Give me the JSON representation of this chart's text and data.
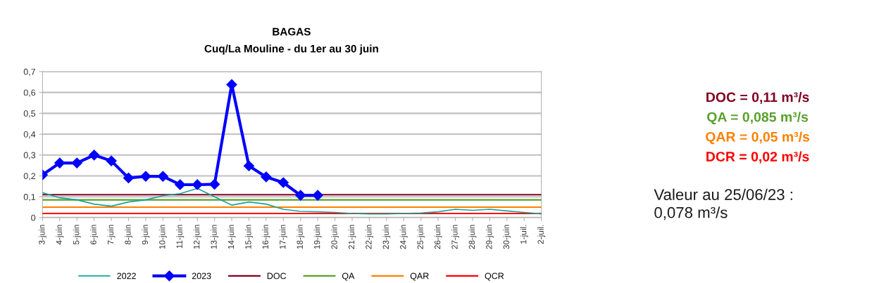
{
  "chart_data": {
    "type": "line",
    "title": "BAGAS",
    "subtitle": "Cuq/La Mouline - du 1er au 30 juin",
    "categories": [
      "3-juin",
      "4-juin",
      "5-juin",
      "6-juin",
      "7-juin",
      "8-juin",
      "9-juin",
      "10-juin",
      "11-juin",
      "12-juin",
      "13-juin",
      "14-juin",
      "15-juin",
      "16-juin",
      "17-juin",
      "18-juin",
      "19-juin",
      "20-juin",
      "21-juin",
      "22-juin",
      "23-juin",
      "24-juin",
      "25-juin",
      "26-juin",
      "27-juin",
      "28-juin",
      "29-juin",
      "30-juin",
      "1-juil.",
      "2-juil."
    ],
    "series": [
      {
        "name": "2022",
        "color": "#1aa39a",
        "marker": "none",
        "values": [
          0.12,
          0.095,
          0.085,
          0.065,
          0.055,
          0.075,
          0.085,
          0.105,
          0.115,
          0.14,
          0.1,
          0.06,
          0.075,
          0.065,
          0.04,
          0.03,
          0.028,
          0.025,
          0.02,
          0.018,
          0.018,
          0.02,
          0.022,
          0.028,
          0.04,
          0.035,
          0.04,
          0.032,
          0.025,
          0.018
        ]
      },
      {
        "name": "2023",
        "color": "#0000ff",
        "marker": "diamond",
        "values": [
          0.205,
          0.262,
          0.262,
          0.3,
          0.272,
          0.19,
          0.198,
          0.198,
          0.158,
          0.158,
          0.16,
          0.638,
          0.248,
          0.195,
          0.168,
          0.107,
          0.107,
          null,
          null,
          null,
          null,
          null,
          null,
          null,
          null,
          null,
          null,
          null,
          null,
          null
        ]
      }
    ],
    "ref_lines": [
      {
        "axis": "y",
        "value": 0.11,
        "label": "DOC",
        "color": "#800020"
      },
      {
        "axis": "y",
        "value": 0.085,
        "label": "QA",
        "color": "#5aa02c"
      },
      {
        "axis": "y",
        "value": 0.05,
        "label": "QAR",
        "color": "#ff8000"
      },
      {
        "axis": "y",
        "value": 0.02,
        "label": "QCR",
        "color": "#ff0000"
      }
    ],
    "ylim": [
      0,
      0.7
    ],
    "yticks": [
      {
        "value": 0,
        "label": "0"
      },
      {
        "value": 0.1,
        "label": "0,1"
      },
      {
        "value": 0.2,
        "label": "0,2"
      },
      {
        "value": 0.3,
        "label": "0,3"
      },
      {
        "value": 0.4,
        "label": "0,4"
      },
      {
        "value": 0.5,
        "label": "0,5"
      },
      {
        "value": 0.6,
        "label": "0,6"
      },
      {
        "value": 0.7,
        "label": "0,7"
      }
    ],
    "grid": "y",
    "legend": "bottom",
    "annotations": [
      "DOC = 0,11 m³/s",
      "QA = 0,085 m³/s",
      "QAR = 0,05 m³/s",
      "DCR = 0,02 m³/s",
      "Valeur au 25/06/23 :\n0,078 m³/s"
    ]
  }
}
